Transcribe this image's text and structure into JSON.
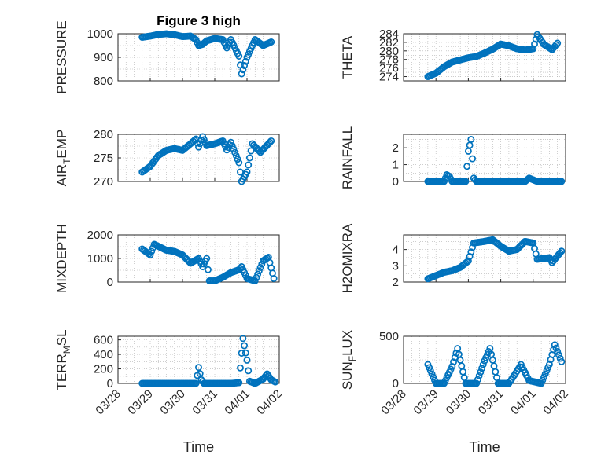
{
  "figure": {
    "title": "Figure 3 high",
    "marker_color": "#0072BD"
  },
  "chart_data": [
    {
      "type": "scatter",
      "id": "pressure",
      "ylabel": "PRESSURE",
      "xlim": [
        "03/28",
        "04/02"
      ],
      "xticks": [],
      "ylim": [
        800,
        1000
      ],
      "yticks": [
        "800",
        "900",
        "1000"
      ],
      "grid": true,
      "show_title": true,
      "anchors": [
        [
          "03/28 18:00",
          985
        ],
        [
          "03/29 00:00",
          990
        ],
        [
          "03/29 06:00",
          997
        ],
        [
          "03/29 12:00",
          1000
        ],
        [
          "03/29 18:00",
          996
        ],
        [
          "03/30 00:00",
          988
        ],
        [
          "03/30 06:00",
          990
        ],
        [
          "03/30 10:00",
          975
        ],
        [
          "03/30 12:00",
          950
        ],
        [
          "03/30 15:00",
          955
        ],
        [
          "03/30 18:00",
          970
        ],
        [
          "03/31 00:00",
          980
        ],
        [
          "03/31 06:00",
          975
        ],
        [
          "03/31 09:00",
          940
        ],
        [
          "03/31 12:00",
          975
        ],
        [
          "03/31 18:00",
          905
        ],
        [
          "03/31 20:00",
          830
        ],
        [
          "04/01 00:00",
          900
        ],
        [
          "04/01 06:00",
          975
        ],
        [
          "04/01 12:00",
          950
        ],
        [
          "04/01 18:00",
          965
        ]
      ]
    },
    {
      "type": "scatter",
      "id": "theta",
      "ylabel": "THETA",
      "xlim": [
        "03/28",
        "04/02"
      ],
      "xticks": [],
      "ylim": [
        273,
        284
      ],
      "yticks": [
        "274",
        "276",
        "278",
        "280",
        "282",
        "284"
      ],
      "grid": true,
      "anchors": [
        [
          "03/28 18:00",
          274
        ],
        [
          "03/29 00:00",
          274.8
        ],
        [
          "03/29 06:00",
          276.3
        ],
        [
          "03/29 12:00",
          277.4
        ],
        [
          "03/29 18:00",
          277.9
        ],
        [
          "03/30 00:00",
          278.4
        ],
        [
          "03/30 06:00",
          278.7
        ],
        [
          "03/30 12:00",
          279.5
        ],
        [
          "03/30 18:00",
          280.4
        ],
        [
          "03/31 00:00",
          281.6
        ],
        [
          "03/31 06:00",
          281.2
        ],
        [
          "03/31 12:00",
          280.5
        ],
        [
          "03/31 18:00",
          280.2
        ],
        [
          "04/01 00:00",
          280.5
        ],
        [
          "04/01 03:00",
          283.8
        ],
        [
          "04/01 08:00",
          281.5
        ],
        [
          "04/01 14:00",
          280.3
        ],
        [
          "04/01 18:00",
          281.8
        ]
      ]
    },
    {
      "type": "scatter",
      "id": "air_temp",
      "ylabel": "AIR",
      "ylabel_sub": "T",
      "ylabel_end": "EMP",
      "xlim": [
        "03/28",
        "04/02"
      ],
      "xticks": [],
      "ylim": [
        270,
        280
      ],
      "yticks": [
        "270",
        "275",
        "280"
      ],
      "grid": true,
      "anchors": [
        [
          "03/28 18:00",
          272
        ],
        [
          "03/29 00:00",
          273.2
        ],
        [
          "03/29 06:00",
          275.5
        ],
        [
          "03/29 12:00",
          276.6
        ],
        [
          "03/29 18:00",
          277
        ],
        [
          "03/30 00:00",
          276.6
        ],
        [
          "03/30 06:00",
          278
        ],
        [
          "03/30 10:00",
          279
        ],
        [
          "03/30 12:00",
          277.3
        ],
        [
          "03/30 15:00",
          279.5
        ],
        [
          "03/30 18:00",
          277.6
        ],
        [
          "03/31 00:00",
          278
        ],
        [
          "03/31 06:00",
          278.6
        ],
        [
          "03/31 09:00",
          276.7
        ],
        [
          "03/31 12:00",
          278.3
        ],
        [
          "03/31 18:00",
          274
        ],
        [
          "03/31 20:00",
          270
        ],
        [
          "04/01 00:00",
          272
        ],
        [
          "04/01 04:00",
          278
        ],
        [
          "04/01 10:00",
          276.2
        ],
        [
          "04/01 18:00",
          278.6
        ]
      ]
    },
    {
      "type": "scatter",
      "id": "rainfall",
      "ylabel": "RAINFALL",
      "xlim": [
        "03/28",
        "04/02"
      ],
      "xticks": [],
      "ylim": [
        0,
        2.8
      ],
      "yticks": [
        "0",
        "1",
        "2"
      ],
      "grid": true,
      "anchors": [
        [
          "03/28 18:00",
          0
        ],
        [
          "03/29 06:00",
          0
        ],
        [
          "03/29 08:00",
          0.4
        ],
        [
          "03/29 10:00",
          0.3
        ],
        [
          "03/29 12:00",
          0
        ],
        [
          "03/29 22:00",
          0
        ],
        [
          "03/30 00:00",
          1.8
        ],
        [
          "03/30 02:00",
          2.5
        ],
        [
          "03/30 04:00",
          0.2
        ],
        [
          "03/30 06:00",
          0
        ],
        [
          "03/31 18:00",
          0
        ],
        [
          "03/31 21:00",
          0.2
        ],
        [
          "04/01 00:00",
          0.1
        ],
        [
          "04/01 03:00",
          0
        ],
        [
          "04/01 21:00",
          0
        ]
      ]
    },
    {
      "type": "scatter",
      "id": "mixdepth",
      "ylabel": "MIXDEPTH",
      "xlim": [
        "03/28",
        "04/02"
      ],
      "xticks": [],
      "ylim": [
        0,
        2000
      ],
      "yticks": [
        "0",
        "1000",
        "2000"
      ],
      "grid": true,
      "anchors": [
        [
          "03/28 18:00",
          1400
        ],
        [
          "03/29 00:00",
          1150
        ],
        [
          "03/29 03:00",
          1600
        ],
        [
          "03/29 12:00",
          1350
        ],
        [
          "03/29 18:00",
          1300
        ],
        [
          "03/30 00:00",
          1150
        ],
        [
          "03/30 06:00",
          800
        ],
        [
          "03/30 12:00",
          1000
        ],
        [
          "03/30 15:00",
          650
        ],
        [
          "03/30 18:00",
          1000
        ],
        [
          "03/30 20:00",
          50
        ],
        [
          "03/31 00:00",
          50
        ],
        [
          "03/31 06:00",
          200
        ],
        [
          "03/31 12:00",
          400
        ],
        [
          "03/31 18:00",
          520
        ],
        [
          "03/31 20:00",
          650
        ],
        [
          "04/01 00:00",
          150
        ],
        [
          "04/01 06:00",
          50
        ],
        [
          "04/01 12:00",
          900
        ],
        [
          "04/01 16:00",
          1050
        ],
        [
          "04/01 20:00",
          150
        ]
      ]
    },
    {
      "type": "scatter",
      "id": "h2omixra",
      "ylabel": "H2OMIXRA",
      "xlim": [
        "03/28",
        "04/02"
      ],
      "xticks": [],
      "ylim": [
        2,
        4.9
      ],
      "yticks": [
        "2",
        "3",
        "4"
      ],
      "grid": true,
      "anchors": [
        [
          "03/28 18:00",
          2.2
        ],
        [
          "03/29 00:00",
          2.4
        ],
        [
          "03/29 06:00",
          2.6
        ],
        [
          "03/29 12:00",
          2.7
        ],
        [
          "03/29 18:00",
          2.9
        ],
        [
          "03/30 00:00",
          3.3
        ],
        [
          "03/30 04:00",
          4.4
        ],
        [
          "03/30 12:00",
          4.5
        ],
        [
          "03/30 18:00",
          4.6
        ],
        [
          "03/31 00:00",
          4.2
        ],
        [
          "03/31 06:00",
          3.9
        ],
        [
          "03/31 12:00",
          4.0
        ],
        [
          "03/31 18:00",
          4.5
        ],
        [
          "04/01 00:00",
          4.4
        ],
        [
          "04/01 03:00",
          3.4
        ],
        [
          "04/01 12:00",
          3.5
        ],
        [
          "04/01 14:00",
          3.2
        ],
        [
          "04/01 21:00",
          3.9
        ]
      ]
    },
    {
      "type": "scatter",
      "id": "terr_msl",
      "ylabel": "TERR",
      "ylabel_sub": "M",
      "ylabel_end": "SL",
      "xlim": [
        "03/28",
        "04/02"
      ],
      "xticks": [
        "03/28",
        "03/29",
        "03/30",
        "03/31",
        "04/01",
        "04/02"
      ],
      "xlabel": "Time",
      "ylim": [
        0,
        650
      ],
      "yticks": [
        "0",
        "200",
        "400",
        "600"
      ],
      "grid": true,
      "anchors": [
        [
          "03/28 18:00",
          0
        ],
        [
          "03/30 10:00",
          0
        ],
        [
          "03/30 12:00",
          220
        ],
        [
          "03/30 14:00",
          50
        ],
        [
          "03/30 16:00",
          0
        ],
        [
          "03/31 12:00",
          0
        ],
        [
          "03/31 18:00",
          10
        ],
        [
          "03/31 21:00",
          620
        ],
        [
          "04/01 00:00",
          320
        ],
        [
          "04/01 02:00",
          30
        ],
        [
          "04/01 06:00",
          0
        ],
        [
          "04/01 12:00",
          60
        ],
        [
          "04/01 15:00",
          130
        ],
        [
          "04/01 18:00",
          50
        ],
        [
          "04/01 21:00",
          20
        ]
      ]
    },
    {
      "type": "scatter",
      "id": "sun_flux",
      "ylabel": "SUN",
      "ylabel_sub": "F",
      "ylabel_end": "LUX",
      "xlim": [
        "03/28",
        "04/02"
      ],
      "xticks": [
        "03/28",
        "03/29",
        "03/30",
        "03/31",
        "04/01",
        "04/02"
      ],
      "xlabel": "Time",
      "ylim": [
        0,
        500
      ],
      "yticks": [
        "0",
        "500"
      ],
      "grid": true,
      "anchors": [
        [
          "03/28 18:00",
          200
        ],
        [
          "03/29 00:00",
          0
        ],
        [
          "03/29 06:00",
          0
        ],
        [
          "03/29 12:00",
          180
        ],
        [
          "03/29 16:00",
          370
        ],
        [
          "03/29 22:00",
          0
        ],
        [
          "03/30 06:00",
          0
        ],
        [
          "03/30 12:00",
          240
        ],
        [
          "03/30 16:00",
          370
        ],
        [
          "03/30 22:00",
          0
        ],
        [
          "03/31 06:00",
          0
        ],
        [
          "03/31 12:00",
          130
        ],
        [
          "03/31 15:00",
          200
        ],
        [
          "03/31 21:00",
          30
        ],
        [
          "04/01 06:00",
          0
        ],
        [
          "04/01 12:00",
          200
        ],
        [
          "04/01 16:00",
          410
        ],
        [
          "04/01 21:00",
          230
        ]
      ]
    }
  ]
}
